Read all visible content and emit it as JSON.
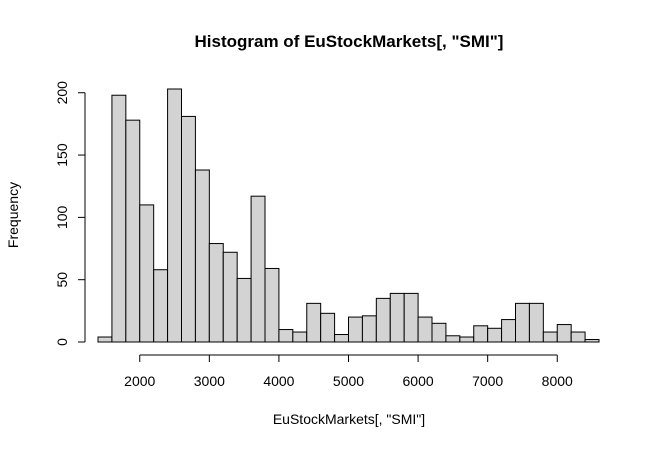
{
  "chart_data": {
    "type": "bar",
    "title": "Histogram of EuStockMarkets[, \"SMI\"]",
    "xlabel": "EuStockMarkets[, \"SMI\"]",
    "ylabel": "Frequency",
    "bin_width": 200,
    "bin_starts": [
      1400,
      1600,
      1800,
      2000,
      2200,
      2400,
      2600,
      2800,
      3000,
      3200,
      3400,
      3600,
      3800,
      4000,
      4200,
      4400,
      4600,
      4800,
      5000,
      5200,
      5400,
      5600,
      5800,
      6000,
      6200,
      6400,
      6600,
      6800,
      7000,
      7200,
      7400,
      7600,
      7800,
      8000,
      8200,
      8400
    ],
    "values": [
      4,
      198,
      178,
      110,
      58,
      203,
      181,
      138,
      79,
      72,
      51,
      117,
      59,
      10,
      8,
      31,
      23,
      6,
      20,
      21,
      35,
      39,
      39,
      20,
      15,
      5,
      4,
      13,
      11,
      18,
      31,
      31,
      8,
      14,
      8,
      2
    ],
    "xlim": [
      1400,
      8600
    ],
    "ylim": [
      0,
      203
    ],
    "x_ticks": [
      2000,
      3000,
      4000,
      5000,
      6000,
      7000,
      8000
    ],
    "y_ticks": [
      0,
      50,
      100,
      150,
      200
    ],
    "bar_fill": "#d3d3d3",
    "bar_stroke": "#000000",
    "grid": false
  }
}
